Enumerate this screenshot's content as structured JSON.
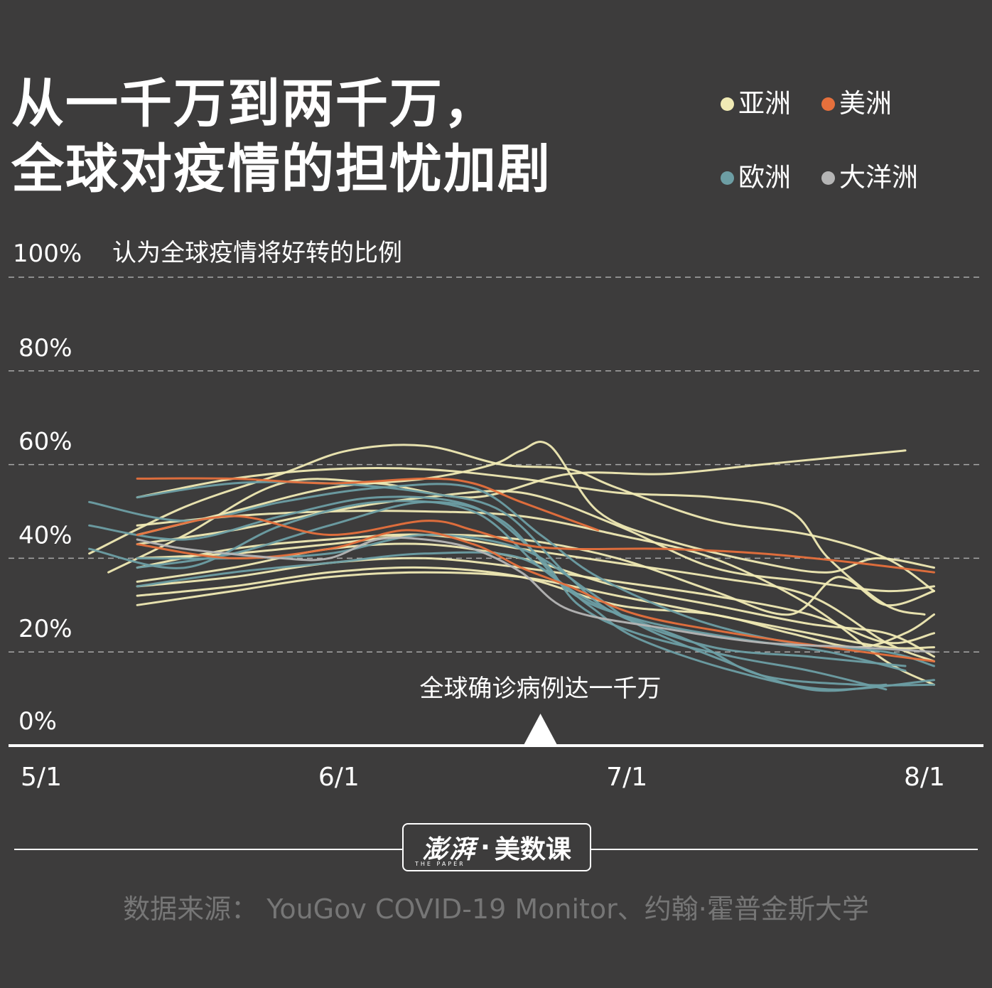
{
  "title": {
    "line1": "从一千万到两千万，",
    "line2": "全球对疫情的担忧加剧"
  },
  "legend": [
    {
      "label": "亚洲",
      "color": "#f0eab4"
    },
    {
      "label": "美洲",
      "color": "#e6703c"
    },
    {
      "label": "欧洲",
      "color": "#6d9ea4"
    },
    {
      "label": "大洋洲",
      "color": "#b5b5b5"
    }
  ],
  "annotation": "全球确诊病例达一千万",
  "logo": {
    "brand": "澎湃",
    "separator": "·",
    "name": "美数课",
    "sub": "THE PAPER"
  },
  "source": "数据来源： YouGov COVID-19 Monitor、约翰·霍普金斯大学",
  "chart_data": {
    "type": "line",
    "title": "认为全球疫情将好转的比例",
    "ylabel": "",
    "xlabel": "",
    "y_ticks": [
      "100%",
      "80%",
      "60%",
      "40%",
      "20%",
      "0%"
    ],
    "x_ticks": [
      "5/1",
      "6/1",
      "7/1",
      "8/1"
    ],
    "ylim": [
      0,
      100
    ],
    "xlim": [
      0,
      94
    ],
    "annotation_day": 52,
    "series": [
      {
        "region": "亚洲",
        "points": [
          [
            7,
            37
          ],
          [
            15,
            45
          ],
          [
            25,
            56
          ],
          [
            35,
            56
          ],
          [
            45,
            53
          ],
          [
            55,
            58
          ],
          [
            65,
            58
          ],
          [
            75,
            60
          ],
          [
            85,
            62
          ],
          [
            90,
            63
          ]
        ]
      },
      {
        "region": "亚洲",
        "points": [
          [
            5,
            41
          ],
          [
            15,
            51
          ],
          [
            25,
            58
          ],
          [
            32,
            63
          ],
          [
            40,
            64
          ],
          [
            48,
            60
          ],
          [
            55,
            59
          ],
          [
            60,
            55
          ],
          [
            70,
            48
          ],
          [
            80,
            45
          ],
          [
            88,
            40
          ],
          [
            93,
            33
          ]
        ]
      },
      {
        "region": "亚洲",
        "points": [
          [
            10,
            53
          ],
          [
            20,
            57
          ],
          [
            30,
            59
          ],
          [
            40,
            59
          ],
          [
            50,
            57
          ],
          [
            60,
            54
          ],
          [
            70,
            53
          ],
          [
            78,
            50
          ],
          [
            82,
            40
          ],
          [
            88,
            30
          ],
          [
            92,
            28
          ]
        ]
      },
      {
        "region": "亚洲",
        "points": [
          [
            10,
            45
          ],
          [
            20,
            50
          ],
          [
            30,
            55
          ],
          [
            40,
            57
          ],
          [
            47,
            60
          ],
          [
            50,
            63
          ],
          [
            53,
            64
          ],
          [
            58,
            50
          ],
          [
            65,
            44
          ],
          [
            75,
            39
          ],
          [
            82,
            37
          ],
          [
            87,
            40
          ],
          [
            93,
            38
          ]
        ]
      },
      {
        "region": "亚洲",
        "points": [
          [
            10,
            43
          ],
          [
            20,
            46
          ],
          [
            30,
            50
          ],
          [
            40,
            53
          ],
          [
            50,
            54
          ],
          [
            60,
            47
          ],
          [
            70,
            38
          ],
          [
            80,
            35
          ],
          [
            88,
            33
          ],
          [
            93,
            34
          ]
        ]
      },
      {
        "region": "亚洲",
        "points": [
          [
            10,
            38
          ],
          [
            20,
            42
          ],
          [
            30,
            44
          ],
          [
            40,
            45
          ],
          [
            50,
            42
          ],
          [
            60,
            39
          ],
          [
            70,
            36
          ],
          [
            80,
            32
          ],
          [
            88,
            22
          ],
          [
            93,
            18
          ]
        ]
      },
      {
        "region": "亚洲",
        "points": [
          [
            10,
            34
          ],
          [
            20,
            36
          ],
          [
            30,
            39
          ],
          [
            40,
            40
          ],
          [
            50,
            38
          ],
          [
            60,
            35
          ],
          [
            70,
            32
          ],
          [
            80,
            28
          ],
          [
            88,
            22
          ],
          [
            93,
            24
          ]
        ]
      },
      {
        "region": "亚洲",
        "points": [
          [
            10,
            32
          ],
          [
            20,
            34
          ],
          [
            30,
            37
          ],
          [
            40,
            38
          ],
          [
            50,
            36
          ],
          [
            60,
            30
          ],
          [
            70,
            28
          ],
          [
            78,
            24
          ],
          [
            85,
            21
          ],
          [
            90,
            24
          ],
          [
            93,
            28
          ]
        ]
      },
      {
        "region": "亚洲",
        "points": [
          [
            10,
            35
          ],
          [
            20,
            38
          ],
          [
            30,
            42
          ],
          [
            40,
            43
          ],
          [
            50,
            40
          ],
          [
            60,
            34
          ],
          [
            70,
            30
          ],
          [
            80,
            26
          ],
          [
            88,
            24
          ],
          [
            93,
            19
          ]
        ]
      },
      {
        "region": "亚洲",
        "points": [
          [
            10,
            47
          ],
          [
            20,
            49
          ],
          [
            30,
            50
          ],
          [
            40,
            50
          ],
          [
            50,
            49
          ],
          [
            60,
            45
          ],
          [
            70,
            40
          ],
          [
            80,
            30
          ],
          [
            88,
            18
          ],
          [
            93,
            13
          ]
        ]
      },
      {
        "region": "亚洲",
        "points": [
          [
            10,
            30
          ],
          [
            20,
            33
          ],
          [
            30,
            36
          ],
          [
            40,
            37
          ],
          [
            50,
            36
          ],
          [
            60,
            32
          ],
          [
            70,
            28
          ],
          [
            80,
            24
          ],
          [
            88,
            21
          ],
          [
            93,
            21
          ]
        ]
      },
      {
        "region": "亚洲",
        "points": [
          [
            10,
            40
          ],
          [
            20,
            41
          ],
          [
            30,
            43
          ],
          [
            40,
            45
          ],
          [
            50,
            44
          ],
          [
            60,
            40
          ],
          [
            70,
            33
          ],
          [
            78,
            28
          ],
          [
            83,
            36
          ],
          [
            88,
            30
          ],
          [
            93,
            33
          ]
        ]
      },
      {
        "region": "美洲",
        "points": [
          [
            10,
            57
          ],
          [
            20,
            57
          ],
          [
            30,
            56
          ],
          [
            40,
            57
          ],
          [
            45,
            56
          ],
          [
            50,
            52
          ],
          [
            58,
            46
          ]
        ]
      },
      {
        "region": "美洲",
        "points": [
          [
            10,
            45
          ],
          [
            20,
            49
          ],
          [
            30,
            45
          ],
          [
            40,
            48
          ],
          [
            45,
            46
          ],
          [
            50,
            43
          ],
          [
            55,
            42
          ],
          [
            65,
            42
          ],
          [
            75,
            41
          ],
          [
            85,
            39
          ],
          [
            93,
            37
          ]
        ]
      },
      {
        "region": "美洲",
        "points": [
          [
            10,
            43
          ],
          [
            20,
            40
          ],
          [
            30,
            42
          ],
          [
            38,
            46
          ],
          [
            45,
            43
          ],
          [
            50,
            38
          ],
          [
            55,
            34
          ],
          [
            62,
            28
          ],
          [
            72,
            24
          ],
          [
            82,
            21
          ],
          [
            93,
            18
          ]
        ]
      },
      {
        "region": "欧洲",
        "points": [
          [
            5,
            52
          ],
          [
            15,
            48
          ],
          [
            25,
            52
          ],
          [
            35,
            55
          ],
          [
            45,
            55
          ],
          [
            52,
            45
          ],
          [
            58,
            36
          ],
          [
            68,
            27
          ],
          [
            78,
            22
          ],
          [
            88,
            20
          ],
          [
            93,
            17
          ]
        ]
      },
      {
        "region": "欧洲",
        "points": [
          [
            5,
            42
          ],
          [
            15,
            38
          ],
          [
            25,
            47
          ],
          [
            35,
            52
          ],
          [
            45,
            50
          ],
          [
            52,
            38
          ],
          [
            58,
            30
          ],
          [
            68,
            22
          ],
          [
            75,
            15
          ],
          [
            85,
            13
          ],
          [
            93,
            13
          ]
        ]
      },
      {
        "region": "欧洲",
        "points": [
          [
            10,
            53
          ],
          [
            20,
            56
          ],
          [
            30,
            56
          ],
          [
            40,
            54
          ],
          [
            48,
            50
          ],
          [
            55,
            36
          ],
          [
            60,
            28
          ],
          [
            70,
            21
          ],
          [
            80,
            19
          ],
          [
            90,
            17
          ]
        ]
      },
      {
        "region": "欧洲",
        "points": [
          [
            10,
            38
          ],
          [
            20,
            41
          ],
          [
            30,
            47
          ],
          [
            40,
            52
          ],
          [
            48,
            48
          ],
          [
            55,
            33
          ],
          [
            62,
            27
          ],
          [
            72,
            23
          ],
          [
            82,
            20
          ],
          [
            90,
            16
          ]
        ]
      },
      {
        "region": "欧洲",
        "points": [
          [
            10,
            40
          ],
          [
            20,
            40
          ],
          [
            30,
            41
          ],
          [
            40,
            45
          ],
          [
            50,
            42
          ],
          [
            57,
            33
          ],
          [
            62,
            26
          ],
          [
            70,
            19
          ],
          [
            80,
            12
          ],
          [
            88,
            13
          ]
        ]
      },
      {
        "region": "欧洲",
        "points": [
          [
            10,
            34
          ],
          [
            20,
            37
          ],
          [
            30,
            39
          ],
          [
            40,
            41
          ],
          [
            50,
            40
          ],
          [
            57,
            30
          ],
          [
            62,
            23
          ],
          [
            72,
            16
          ],
          [
            82,
            12
          ],
          [
            93,
            14
          ]
        ]
      },
      {
        "region": "欧洲",
        "points": [
          [
            5,
            47
          ],
          [
            15,
            44
          ],
          [
            25,
            49
          ],
          [
            35,
            53
          ],
          [
            45,
            51
          ],
          [
            52,
            40
          ],
          [
            56,
            30
          ],
          [
            62,
            24
          ],
          [
            72,
            19
          ],
          [
            80,
            16
          ],
          [
            88,
            12
          ]
        ]
      },
      {
        "region": "大洋洲",
        "points": [
          [
            10,
            44
          ],
          [
            15,
            42
          ],
          [
            25,
            40
          ],
          [
            30,
            40
          ],
          [
            35,
            44
          ],
          [
            40,
            44
          ],
          [
            45,
            42
          ],
          [
            50,
            37
          ],
          [
            55,
            29
          ],
          [
            65,
            25
          ],
          [
            75,
            22
          ],
          [
            85,
            21
          ],
          [
            93,
            20
          ]
        ]
      }
    ]
  }
}
